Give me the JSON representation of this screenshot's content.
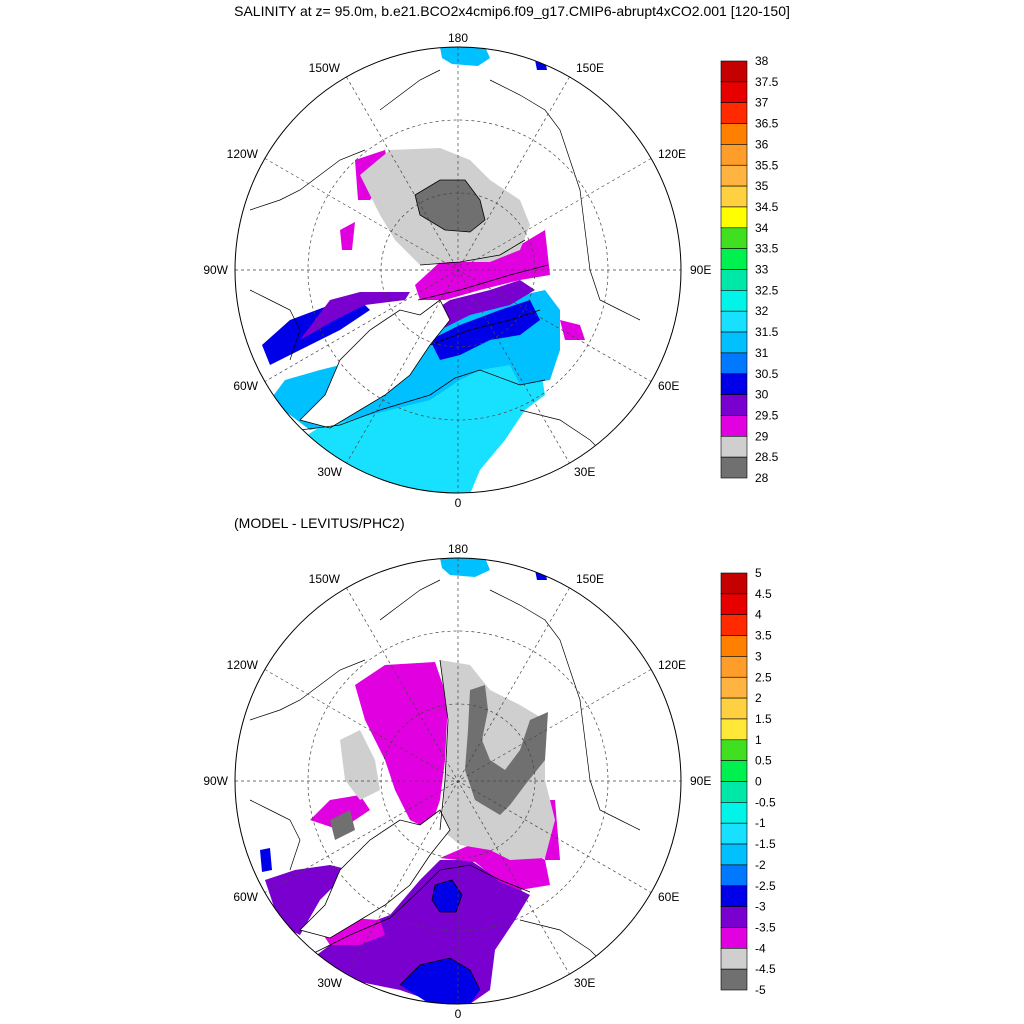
{
  "title": "SALINITY at z=  95.0m, b.e21.BCO2x4cmip6.f09_g17.CMIP6-abrupt4xCO2.001 [120-150]",
  "panel2_title": "(MODEL - LEVITUS/PHC2)",
  "map_labels": {
    "top": "180",
    "bottom": "0",
    "left": "90W",
    "right": "90E",
    "upper_left": "150W",
    "upper_right": "150E",
    "mid_left_upper": "120W",
    "mid_right_upper": "120E",
    "mid_left_lower": "60W",
    "mid_right_lower": "60E",
    "lower_left": "30W",
    "lower_right": "30E"
  },
  "colorbar1": {
    "labels": [
      "38",
      "37.5",
      "37",
      "36.5",
      "36",
      "35.5",
      "35",
      "34.5",
      "34",
      "33.5",
      "33",
      "32.5",
      "32",
      "31.5",
      "31",
      "30.5",
      "30",
      "29.5",
      "29",
      "28.5",
      "28"
    ],
    "colors": [
      "#c40000",
      "#e60000",
      "#ff2a00",
      "#ff8000",
      "#ff9d2a",
      "#ffb340",
      "#ffd040",
      "#ffff00",
      "#40e020",
      "#00f050",
      "#00e8a8",
      "#00f4e8",
      "#18e0ff",
      "#00c0ff",
      "#0078ff",
      "#0000e8",
      "#7a00d0",
      "#e000e0",
      "#cfcfcf",
      "#707070"
    ]
  },
  "colorbar2": {
    "labels": [
      "5",
      "4.5",
      "4",
      "3.5",
      "3",
      "2.5",
      "2",
      "1.5",
      "1",
      "0.5",
      "0",
      "-0.5",
      "-1",
      "-1.5",
      "-2",
      "-2.5",
      "-3",
      "-3.5",
      "-4",
      "-4.5",
      "-5"
    ],
    "colors": [
      "#c40000",
      "#e60000",
      "#ff2a00",
      "#ff8000",
      "#ff9d2a",
      "#ffb340",
      "#ffd040",
      "#ffe838",
      "#40e020",
      "#00f050",
      "#00e8a8",
      "#00f4e8",
      "#18e0ff",
      "#00c0ff",
      "#0078ff",
      "#0000e8",
      "#7a00d0",
      "#e000e0",
      "#cfcfcf",
      "#707070"
    ]
  }
}
